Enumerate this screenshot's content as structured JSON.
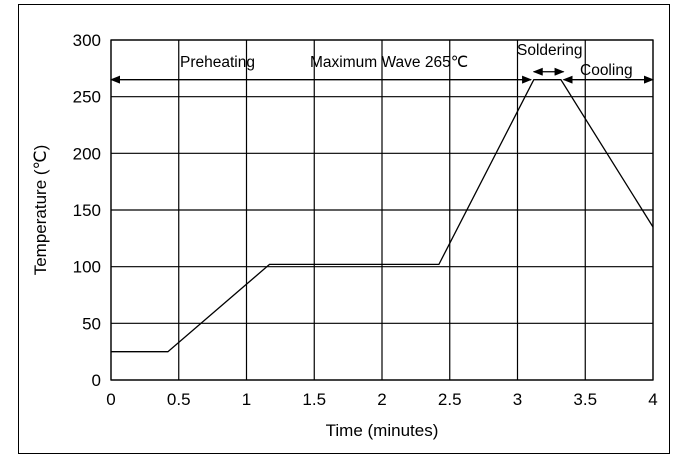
{
  "chart_data": {
    "type": "line",
    "xlabel": "Time (minutes)",
    "ylabel": "Temperature (℃)",
    "xlim": [
      0,
      4
    ],
    "ylim": [
      0,
      300
    ],
    "x_ticks": [
      "0",
      "0.5",
      "1",
      "1.5",
      "2",
      "2.5",
      "3",
      "3.5",
      "4"
    ],
    "y_ticks": [
      "0",
      "50",
      "100",
      "150",
      "200",
      "250",
      "300"
    ],
    "grid": true,
    "series": [
      {
        "x": [
          0,
          0.42,
          1.17,
          2.42,
          3.12,
          3.32,
          4.0
        ],
        "y": [
          25,
          25,
          102,
          102,
          265,
          265,
          135
        ]
      }
    ],
    "annotations": {
      "preheating": "Preheating",
      "maximum_wave": "Maximum Wave 265℃",
      "soldering": "Soldering",
      "cooling": "Cooling"
    },
    "annotation_arrows": [
      {
        "from": 0,
        "to": 3.1,
        "y": 265
      },
      {
        "from": 3.12,
        "to": 3.34,
        "y": 272
      },
      {
        "from": 3.34,
        "to": 4.0,
        "y": 265
      }
    ]
  }
}
